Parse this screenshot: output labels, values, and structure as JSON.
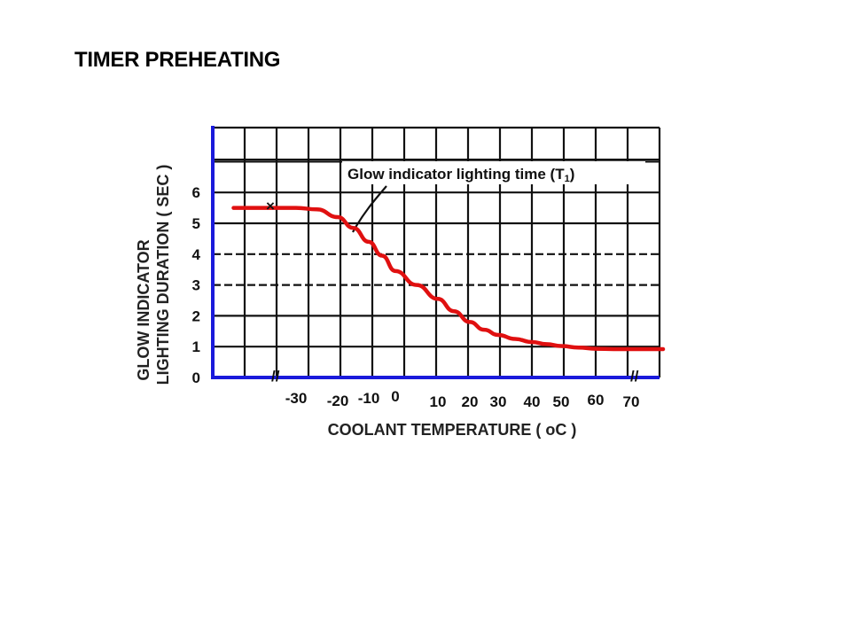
{
  "page": {
    "title": "TIMER PREHEATING"
  },
  "colors": {
    "curve": "#e01010",
    "axis": "#1a1adb",
    "grid": "#111111"
  },
  "chart_data": {
    "type": "line",
    "title": "TIMER PREHEATING",
    "xlabel": "COOLANT TEMPERATURE ( oC )",
    "ylabel_line1": "GLOW INDICATOR",
    "ylabel_line2": "LIGHTING DURATION ( SEC )",
    "x_ticks": [
      "-30",
      "-20",
      "-10",
      "0",
      "10",
      "20",
      "30",
      "40",
      "50",
      "60",
      "70"
    ],
    "y_ticks": [
      "0",
      "1",
      "2",
      "3",
      "4",
      "5",
      "6"
    ],
    "xlim": [
      -45,
      80
    ],
    "ylim": [
      0,
      8
    ],
    "annotation": "Glow indicator lighting time (T1)",
    "annotation_text": "Glow indicator lighting time (T",
    "annotation_sub": "1",
    "annotation_close": ")",
    "series": [
      {
        "name": "Glow indicator lighting time (T1)",
        "x": [
          -45,
          -35,
          -30,
          -25,
          -20,
          -15,
          -10,
          -5,
          0,
          5,
          10,
          15,
          20,
          25,
          30,
          35,
          40,
          45,
          50,
          55,
          60,
          65,
          70,
          80
        ],
        "y": [
          5.5,
          5.5,
          5.5,
          5.45,
          5.2,
          4.85,
          4.4,
          3.95,
          3.45,
          3.0,
          2.55,
          2.15,
          1.8,
          1.55,
          1.38,
          1.25,
          1.15,
          1.08,
          1.02,
          0.97,
          0.93,
          0.92,
          0.92,
          0.92
        ]
      }
    ]
  }
}
